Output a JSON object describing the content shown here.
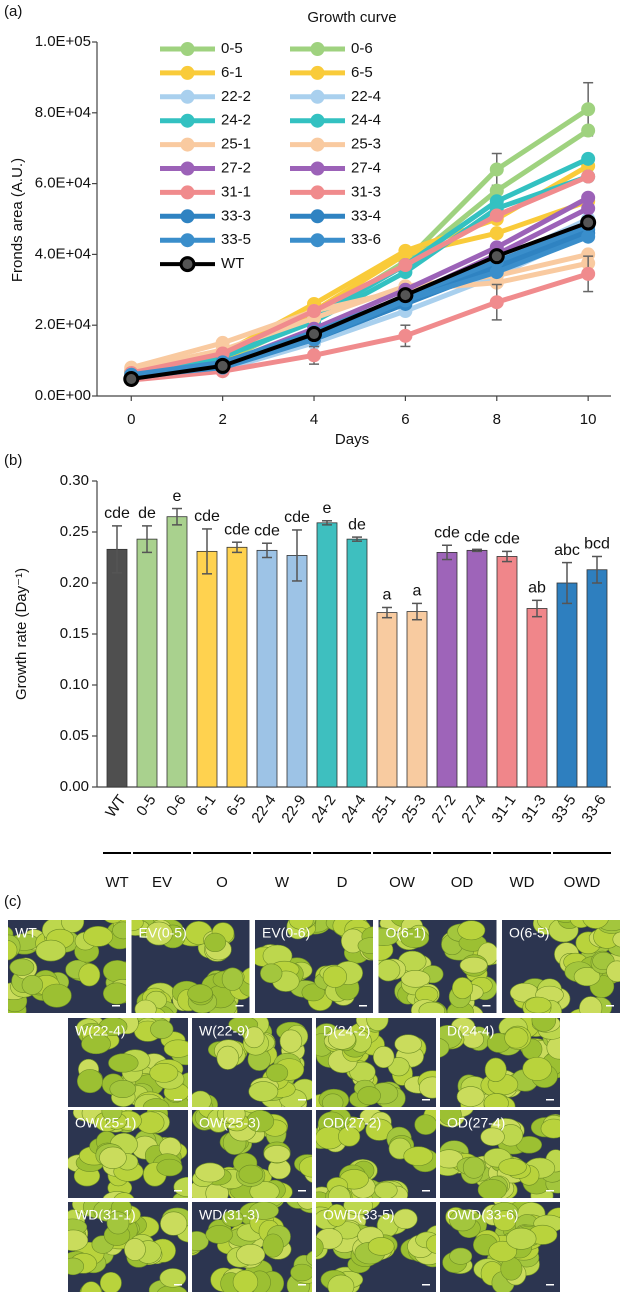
{
  "chart_data": [
    {
      "type": "line",
      "panel_label": "(a)",
      "title": "Growth curve",
      "x_label": "Days",
      "y_label": "Fronds area (A.U.)",
      "x": [
        0,
        2,
        4,
        6,
        8,
        10
      ],
      "xlim": [
        -0.75,
        10.5
      ],
      "xticks": [
        0,
        2,
        4,
        6,
        8,
        10
      ],
      "ylim": [
        0,
        100000
      ],
      "yticks": [
        {
          "value": 0,
          "label": "0.0E+00"
        },
        {
          "value": 20000,
          "label": "2.0E+04"
        },
        {
          "value": 40000,
          "label": "4.0E+04"
        },
        {
          "value": 60000,
          "label": "6.0E+04"
        },
        {
          "value": 80000,
          "label": "8.0E+04"
        },
        {
          "value": 100000,
          "label": "1.0E+05"
        }
      ],
      "legend": "top-left",
      "series": [
        {
          "name": "0-5",
          "color": "#9fd27f",
          "values": [
            6000,
            10000,
            22000,
            38000,
            64000,
            81000
          ],
          "errors": [
            null,
            null,
            null,
            3000,
            4500,
            7500
          ]
        },
        {
          "name": "0-6",
          "color": "#9fd27f",
          "values": [
            6500,
            11000,
            23000,
            37000,
            58000,
            75000
          ]
        },
        {
          "name": "6-1",
          "color": "#f9cb3a",
          "values": [
            7000,
            12000,
            26000,
            41000,
            50000,
            65000
          ]
        },
        {
          "name": "6-5",
          "color": "#f9cb3a",
          "values": [
            6000,
            10000,
            24000,
            40000,
            46000,
            55000
          ]
        },
        {
          "name": "22-2",
          "color": "#a9d0ee",
          "values": [
            5500,
            7500,
            15000,
            24000,
            34000,
            46000
          ]
        },
        {
          "name": "22-4",
          "color": "#a9d0ee",
          "values": [
            6000,
            8500,
            18000,
            27000,
            38000,
            50000
          ]
        },
        {
          "name": "24-2",
          "color": "#33c1c1",
          "values": [
            7000,
            12000,
            22000,
            37000,
            55000,
            67000
          ]
        },
        {
          "name": "24-4",
          "color": "#33c1c1",
          "values": [
            6500,
            11000,
            21000,
            35000,
            53000,
            62000
          ]
        },
        {
          "name": "25-1",
          "color": "#f9caa0",
          "values": [
            8000,
            15000,
            24000,
            30000,
            32000,
            37500
          ]
        },
        {
          "name": "25-3",
          "color": "#f9caa0",
          "values": [
            7500,
            13000,
            22000,
            31000,
            34000,
            40000
          ]
        },
        {
          "name": "27-2",
          "color": "#9c62b8",
          "values": [
            5500,
            9000,
            19000,
            30000,
            42000,
            56000
          ]
        },
        {
          "name": "27-4",
          "color": "#9c62b8",
          "values": [
            5000,
            8500,
            17000,
            28000,
            40000,
            53000
          ]
        },
        {
          "name": "31-1",
          "color": "#f08b8d",
          "values": [
            6500,
            12000,
            24000,
            37000,
            51000,
            62000
          ]
        },
        {
          "name": "31-3",
          "color": "#f08b8d",
          "values": [
            4500,
            7000,
            11500,
            17000,
            26500,
            34500
          ],
          "errors": [
            null,
            null,
            2500,
            3000,
            5000,
            5000
          ]
        },
        {
          "name": "33-3",
          "color": "#2f83c2",
          "values": [
            5500,
            9000,
            17000,
            27000,
            37000,
            47000
          ]
        },
        {
          "name": "33-4",
          "color": "#2f83c2",
          "values": [
            5000,
            8500,
            16000,
            26000,
            36000,
            46000
          ]
        },
        {
          "name": "33-5",
          "color": "#3a8ecb",
          "values": [
            5500,
            8000,
            16000,
            27000,
            35000,
            45000
          ]
        },
        {
          "name": "33-6",
          "color": "#3a8ecb",
          "values": [
            6000,
            9500,
            18000,
            28000,
            38000,
            48000
          ]
        },
        {
          "name": "WT",
          "color": "#000000",
          "values": [
            4800,
            8500,
            17500,
            28500,
            39500,
            49000
          ]
        }
      ]
    },
    {
      "type": "bar",
      "panel_label": "(b)",
      "y_label": "Growth rate (Day⁻¹)",
      "categories": [
        "WT",
        "0-5",
        "0-6",
        "6-1",
        "6-5",
        "22-4",
        "22-9",
        "24-2",
        "24-4",
        "25-1",
        "25-3",
        "27-2",
        "27-4",
        "31-1",
        "31-3",
        "33-5",
        "33-6"
      ],
      "values": [
        0.233,
        0.243,
        0.265,
        0.231,
        0.235,
        0.232,
        0.227,
        0.259,
        0.243,
        0.171,
        0.172,
        0.23,
        0.232,
        0.226,
        0.175,
        0.2,
        0.213
      ],
      "errors": [
        0.023,
        0.013,
        0.008,
        0.022,
        0.005,
        0.007,
        0.025,
        0.002,
        0.002,
        0.005,
        0.008,
        0.007,
        0.001,
        0.005,
        0.008,
        0.02,
        0.013
      ],
      "annotations": [
        "cde",
        "de",
        "e",
        "cde",
        "cde",
        "cde",
        "cde",
        "e",
        "de",
        "a",
        "a",
        "cde",
        "cde",
        "cde",
        "ab",
        "abc",
        "bcd"
      ],
      "colors": [
        "#4f4f4f",
        "#a9d18e",
        "#a9d18e",
        "#ffd24f",
        "#ffd24f",
        "#9dc3e6",
        "#9dc3e6",
        "#3ebfbf",
        "#3ebfbf",
        "#f8cba0",
        "#f8cba0",
        "#9e64b9",
        "#9e64b9",
        "#f0868a",
        "#f0868a",
        "#2e7fbf",
        "#2e7fbf"
      ],
      "ylim": [
        0,
        0.3
      ],
      "yticks": [
        {
          "value": 0,
          "label": "0.00"
        },
        {
          "value": 0.05,
          "label": "0.05"
        },
        {
          "value": 0.1,
          "label": "0.10"
        },
        {
          "value": 0.15,
          "label": "0.15"
        },
        {
          "value": 0.2,
          "label": "0.20"
        },
        {
          "value": 0.25,
          "label": "0.25"
        },
        {
          "value": 0.3,
          "label": "0.30"
        }
      ],
      "groups": [
        {
          "label": "WT",
          "categories": [
            "WT"
          ]
        },
        {
          "label": "EV",
          "categories": [
            "0-5",
            "0-6"
          ]
        },
        {
          "label": "O",
          "categories": [
            "6-1",
            "6-5"
          ]
        },
        {
          "label": "W",
          "categories": [
            "22-4",
            "22-9"
          ]
        },
        {
          "label": "D",
          "categories": [
            "24-2",
            "24-4"
          ]
        },
        {
          "label": "OW",
          "categories": [
            "25-1",
            "25-3"
          ]
        },
        {
          "label": "OD",
          "categories": [
            "27-2",
            "27-4"
          ]
        },
        {
          "label": "WD",
          "categories": [
            "31-1",
            "31-3"
          ]
        },
        {
          "label": "OWD",
          "categories": [
            "33-5",
            "33-6"
          ]
        }
      ]
    }
  ],
  "photos": {
    "panel_label": "(c)",
    "rows": [
      [
        "WT",
        "EV(0-5)",
        "EV(0-6)",
        "O(6-1)",
        "O(6-5)"
      ],
      [
        "W(22-4)",
        "W(22-9)",
        "D(24-2)",
        "D(24-4)"
      ],
      [
        "OW(25-1)",
        "OW(25-3)",
        "OD(27-2)",
        "OD(27-4)"
      ],
      [
        "WD(31-1)",
        "WD(31-3)",
        "OWD(33-5)",
        "OWD(33-6)"
      ]
    ]
  }
}
